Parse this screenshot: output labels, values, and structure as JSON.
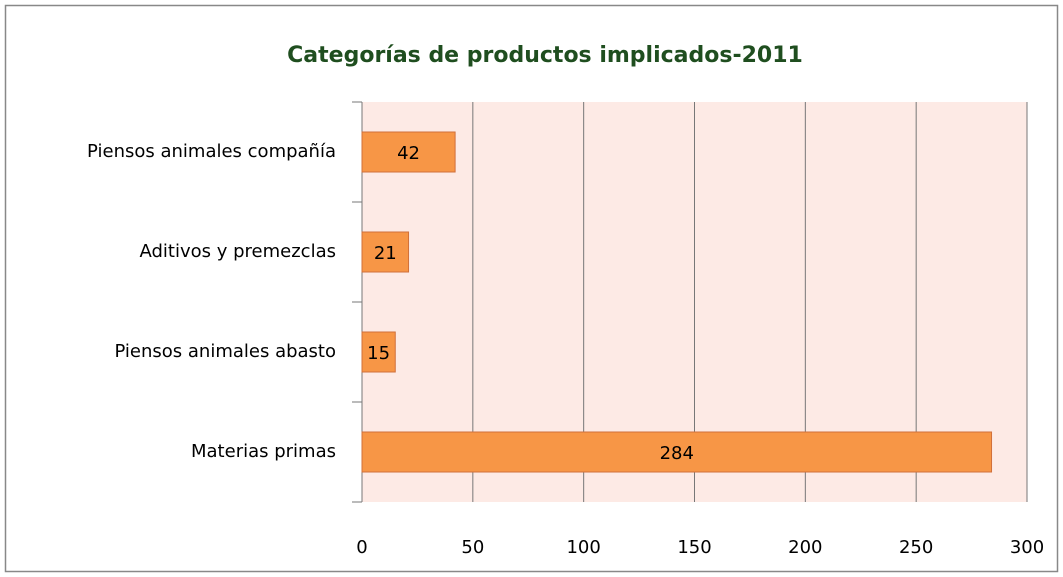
{
  "chart_data": {
    "type": "bar",
    "orientation": "horizontal",
    "title": "Categorías de  productos implicados-2011",
    "categories": [
      "Piensos animales compañía",
      "Aditivos y premezclas",
      "Piensos animales abasto",
      "Materias primas"
    ],
    "values": [
      42,
      21,
      15,
      284
    ],
    "color": "#f79646",
    "xlim": [
      0,
      300
    ],
    "xticks": [
      0,
      50,
      100,
      150,
      200,
      250,
      300
    ],
    "grid": true
  }
}
